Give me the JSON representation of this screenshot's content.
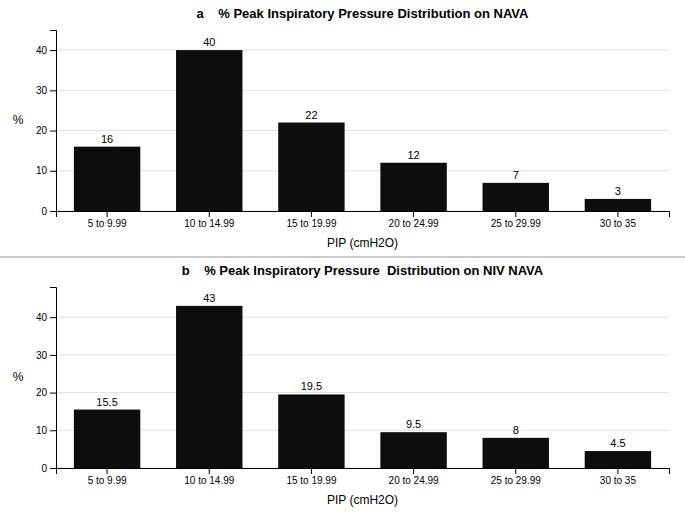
{
  "chart_data": [
    {
      "type": "bar",
      "title": "a    % Peak Inspiratory Pressure Distribution on NAVA",
      "categories": [
        "5 to 9.99",
        "10 to 14.99",
        "15 to 19.99",
        "20 to 24.99",
        "25 to 29.99",
        "30 to 35"
      ],
      "values": [
        16,
        40,
        22,
        12,
        7,
        3
      ],
      "color": "#0d0d0d",
      "xlabel": "PIP (cmH2O)",
      "ylabel": "%",
      "ylim": [
        0,
        45
      ],
      "yticks": [
        0,
        10,
        20,
        30,
        40
      ],
      "grid": true,
      "data_labels": true
    },
    {
      "type": "bar",
      "title": "b    % Peak Inspiratory Pressure  Distribution on NIV NAVA",
      "categories": [
        "5 to 9.99",
        "10 to 14.99",
        "15 to 19.99",
        "20 to 24.99",
        "25 to 29.99",
        "30 to 35"
      ],
      "values": [
        15.5,
        43,
        19.5,
        9.5,
        8,
        4.5
      ],
      "color": "#0d0d0d",
      "xlabel": "PIP (cmH2O)",
      "ylabel": "%",
      "ylim": [
        0,
        48
      ],
      "yticks": [
        0,
        10,
        20,
        30,
        40
      ],
      "grid": true,
      "data_labels": true
    }
  ]
}
